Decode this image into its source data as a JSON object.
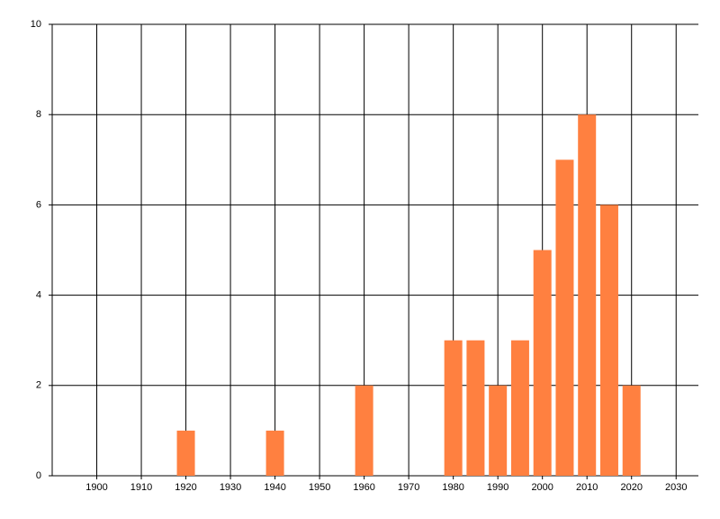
{
  "chart_data": {
    "type": "bar",
    "x": [
      1920,
      1940,
      1960,
      1980,
      1985,
      1990,
      1995,
      2000,
      2005,
      2010,
      2015,
      2020
    ],
    "values": [
      1,
      1,
      2,
      3,
      3,
      2,
      3,
      5,
      7,
      8,
      6,
      2
    ],
    "color": "#ff8040",
    "xlim": [
      1890,
      2035
    ],
    "xticks": [
      1900,
      1910,
      1920,
      1930,
      1940,
      1950,
      1960,
      1970,
      1980,
      1990,
      2000,
      2010,
      2020,
      2030
    ],
    "ylim": [
      0,
      10
    ],
    "yticks": [
      0,
      2,
      4,
      6,
      8,
      10
    ],
    "grid": true
  }
}
